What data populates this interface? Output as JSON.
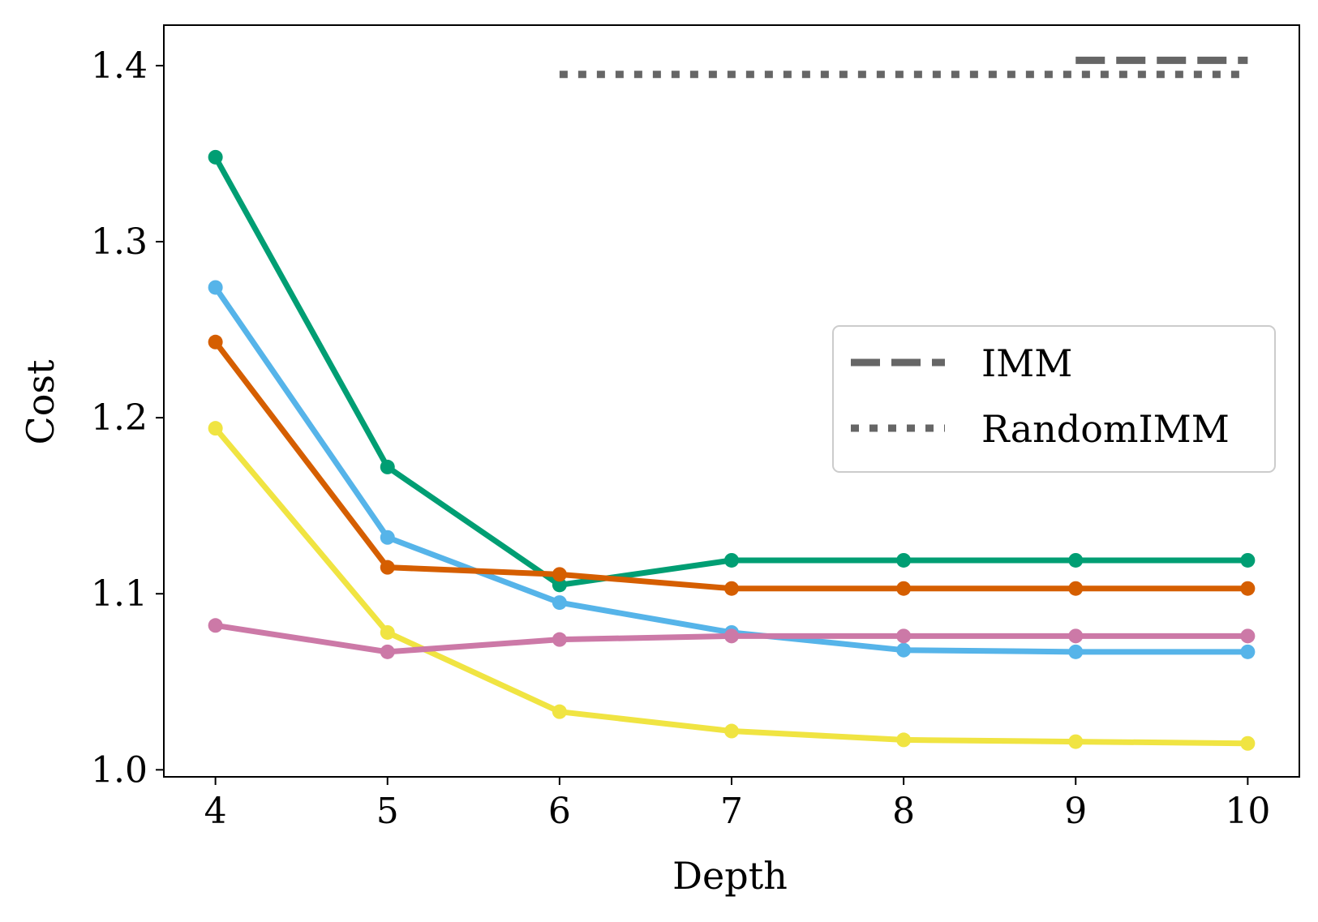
{
  "chart_data": {
    "type": "line",
    "title": "",
    "xlabel": "Depth",
    "ylabel": "Cost",
    "xlim": [
      3.7,
      10.3
    ],
    "ylim": [
      0.996,
      1.423
    ],
    "x_ticks": [
      "4",
      "5",
      "6",
      "7",
      "8",
      "9",
      "10"
    ],
    "y_ticks": [
      "1.0",
      "1.1",
      "1.2",
      "1.3",
      "1.4"
    ],
    "grid": false,
    "legend_position": "center-right",
    "legend": [
      {
        "name": "IMM",
        "style": "dashed",
        "color": "#666666"
      },
      {
        "name": "RandomIMM",
        "style": "dotted",
        "color": "#666666"
      }
    ],
    "x": [
      4,
      5,
      6,
      7,
      8,
      9,
      10
    ],
    "series": [
      {
        "color": "#009E73",
        "values": [
          1.348,
          1.172,
          1.105,
          1.119,
          1.119,
          1.119,
          1.119
        ]
      },
      {
        "color": "#56B4E9",
        "values": [
          1.274,
          1.132,
          1.095,
          1.078,
          1.068,
          1.067,
          1.067
        ]
      },
      {
        "color": "#D55E00",
        "values": [
          1.243,
          1.115,
          1.111,
          1.103,
          1.103,
          1.103,
          1.103
        ]
      },
      {
        "color": "#F0E442",
        "values": [
          1.194,
          1.078,
          1.033,
          1.022,
          1.017,
          1.016,
          1.015
        ]
      },
      {
        "color": "#CC79A7",
        "values": [
          1.082,
          1.067,
          1.074,
          1.076,
          1.076,
          1.076,
          1.076
        ]
      }
    ],
    "reference_lines": [
      {
        "legend": "IMM",
        "style": "dashed",
        "color": "#666666",
        "x": [
          9,
          10
        ],
        "y": 1.403
      },
      {
        "legend": "RandomIMM",
        "style": "dotted",
        "color": "#666666",
        "x": [
          6,
          10
        ],
        "y": 1.395
      }
    ]
  }
}
